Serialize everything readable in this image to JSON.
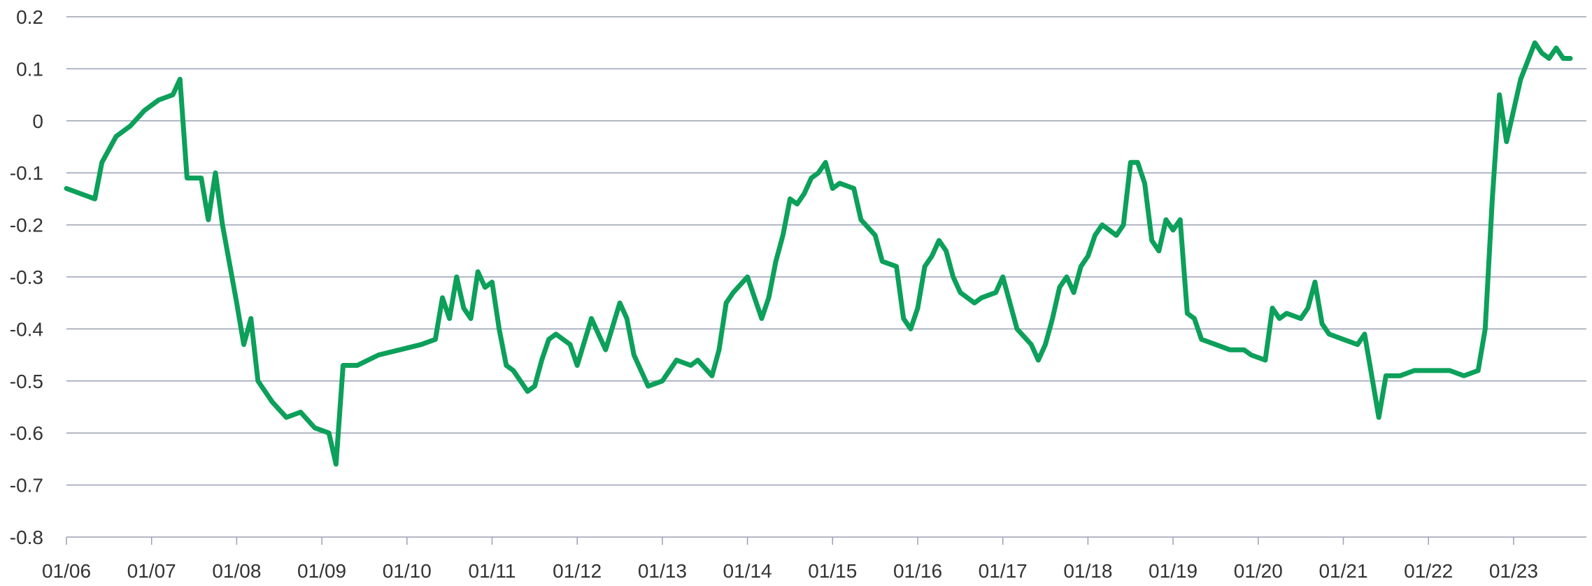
{
  "chart_data": {
    "type": "line",
    "title": "",
    "xlabel": "",
    "ylabel": "",
    "ylim": [
      -0.8,
      0.2
    ],
    "xlim": [
      "2006-01",
      "2023-09"
    ],
    "grid": true,
    "legend": "none",
    "yticks": [
      "0.2",
      "0.1",
      "0",
      "-0.1",
      "-0.2",
      "-0.3",
      "-0.4",
      "-0.5",
      "-0.6",
      "-0.7",
      "-0.8"
    ],
    "xticks": [
      "01/06",
      "01/07",
      "01/08",
      "01/09",
      "01/10",
      "01/11",
      "01/12",
      "01/13",
      "01/14",
      "01/15",
      "01/16",
      "01/17",
      "01/18",
      "01/19",
      "01/20",
      "01/21",
      "01/22",
      "01/23"
    ],
    "colors": {
      "series": "#0ca05a",
      "grid": "#9aa0b4"
    },
    "series": [
      {
        "values": [
          [
            "2006-01",
            -0.13
          ],
          [
            "2006-03",
            -0.14
          ],
          [
            "2006-05",
            -0.15
          ],
          [
            "2006-06",
            -0.08
          ],
          [
            "2006-08",
            -0.03
          ],
          [
            "2006-10",
            -0.01
          ],
          [
            "2006-12",
            0.02
          ],
          [
            "2007-02",
            0.04
          ],
          [
            "2007-04",
            0.05
          ],
          [
            "2007-05",
            0.08
          ],
          [
            "2007-06",
            -0.11
          ],
          [
            "2007-08",
            -0.11
          ],
          [
            "2007-09",
            -0.19
          ],
          [
            "2007-10",
            -0.1
          ],
          [
            "2007-11",
            -0.2
          ],
          [
            "2008-01",
            -0.35
          ],
          [
            "2008-02",
            -0.43
          ],
          [
            "2008-03",
            -0.38
          ],
          [
            "2008-04",
            -0.5
          ],
          [
            "2008-06",
            -0.54
          ],
          [
            "2008-08",
            -0.57
          ],
          [
            "2008-10",
            -0.56
          ],
          [
            "2008-12",
            -0.59
          ],
          [
            "2009-02",
            -0.6
          ],
          [
            "2009-03",
            -0.66
          ],
          [
            "2009-04",
            -0.47
          ],
          [
            "2009-06",
            -0.47
          ],
          [
            "2009-09",
            -0.45
          ],
          [
            "2009-12",
            -0.44
          ],
          [
            "2010-03",
            -0.43
          ],
          [
            "2010-05",
            -0.42
          ],
          [
            "2010-06",
            -0.34
          ],
          [
            "2010-07",
            -0.38
          ],
          [
            "2010-08",
            -0.3
          ],
          [
            "2010-09",
            -0.36
          ],
          [
            "2010-10",
            -0.38
          ],
          [
            "2010-11",
            -0.29
          ],
          [
            "2010-12",
            -0.32
          ],
          [
            "2011-01",
            -0.31
          ],
          [
            "2011-02",
            -0.4
          ],
          [
            "2011-03",
            -0.47
          ],
          [
            "2011-04",
            -0.48
          ],
          [
            "2011-06",
            -0.52
          ],
          [
            "2011-07",
            -0.51
          ],
          [
            "2011-08",
            -0.46
          ],
          [
            "2011-09",
            -0.42
          ],
          [
            "2011-10",
            -0.41
          ],
          [
            "2011-12",
            -0.43
          ],
          [
            "2012-01",
            -0.47
          ],
          [
            "2012-03",
            -0.38
          ],
          [
            "2012-05",
            -0.44
          ],
          [
            "2012-07",
            -0.35
          ],
          [
            "2012-08",
            -0.38
          ],
          [
            "2012-09",
            -0.45
          ],
          [
            "2012-11",
            -0.51
          ],
          [
            "2013-01",
            -0.5
          ],
          [
            "2013-03",
            -0.46
          ],
          [
            "2013-05",
            -0.47
          ],
          [
            "2013-06",
            -0.46
          ],
          [
            "2013-08",
            -0.49
          ],
          [
            "2013-09",
            -0.44
          ],
          [
            "2013-10",
            -0.35
          ],
          [
            "2013-11",
            -0.33
          ],
          [
            "2014-01",
            -0.3
          ],
          [
            "2014-03",
            -0.38
          ],
          [
            "2014-04",
            -0.34
          ],
          [
            "2014-05",
            -0.27
          ],
          [
            "2014-06",
            -0.22
          ],
          [
            "2014-07",
            -0.15
          ],
          [
            "2014-08",
            -0.16
          ],
          [
            "2014-09",
            -0.14
          ],
          [
            "2014-10",
            -0.11
          ],
          [
            "2014-11",
            -0.1
          ],
          [
            "2014-12",
            -0.08
          ],
          [
            "2015-01",
            -0.13
          ],
          [
            "2015-02",
            -0.12
          ],
          [
            "2015-04",
            -0.13
          ],
          [
            "2015-05",
            -0.19
          ],
          [
            "2015-07",
            -0.22
          ],
          [
            "2015-08",
            -0.27
          ],
          [
            "2015-10",
            -0.28
          ],
          [
            "2015-11",
            -0.38
          ],
          [
            "2015-12",
            -0.4
          ],
          [
            "2016-01",
            -0.36
          ],
          [
            "2016-02",
            -0.28
          ],
          [
            "2016-03",
            -0.26
          ],
          [
            "2016-04",
            -0.23
          ],
          [
            "2016-05",
            -0.25
          ],
          [
            "2016-06",
            -0.3
          ],
          [
            "2016-07",
            -0.33
          ],
          [
            "2016-09",
            -0.35
          ],
          [
            "2016-10",
            -0.34
          ],
          [
            "2016-12",
            -0.33
          ],
          [
            "2017-01",
            -0.3
          ],
          [
            "2017-03",
            -0.4
          ],
          [
            "2017-05",
            -0.43
          ],
          [
            "2017-06",
            -0.46
          ],
          [
            "2017-07",
            -0.43
          ],
          [
            "2017-08",
            -0.38
          ],
          [
            "2017-09",
            -0.32
          ],
          [
            "2017-10",
            -0.3
          ],
          [
            "2017-11",
            -0.33
          ],
          [
            "2017-12",
            -0.28
          ],
          [
            "2018-01",
            -0.26
          ],
          [
            "2018-02",
            -0.22
          ],
          [
            "2018-03",
            -0.2
          ],
          [
            "2018-05",
            -0.22
          ],
          [
            "2018-06",
            -0.2
          ],
          [
            "2018-07",
            -0.08
          ],
          [
            "2018-08",
            -0.08
          ],
          [
            "2018-09",
            -0.12
          ],
          [
            "2018-10",
            -0.23
          ],
          [
            "2018-11",
            -0.25
          ],
          [
            "2018-12",
            -0.19
          ],
          [
            "2019-01",
            -0.21
          ],
          [
            "2019-02",
            -0.19
          ],
          [
            "2019-03",
            -0.37
          ],
          [
            "2019-04",
            -0.38
          ],
          [
            "2019-05",
            -0.42
          ],
          [
            "2019-07",
            -0.43
          ],
          [
            "2019-09",
            -0.44
          ],
          [
            "2019-11",
            -0.44
          ],
          [
            "2019-12",
            -0.45
          ],
          [
            "2020-02",
            -0.46
          ],
          [
            "2020-03",
            -0.36
          ],
          [
            "2020-04",
            -0.38
          ],
          [
            "2020-05",
            -0.37
          ],
          [
            "2020-07",
            -0.38
          ],
          [
            "2020-08",
            -0.36
          ],
          [
            "2020-09",
            -0.31
          ],
          [
            "2020-10",
            -0.39
          ],
          [
            "2020-11",
            -0.41
          ],
          [
            "2021-01",
            -0.42
          ],
          [
            "2021-03",
            -0.43
          ],
          [
            "2021-04",
            -0.41
          ],
          [
            "2021-05",
            -0.49
          ],
          [
            "2021-06",
            -0.57
          ],
          [
            "2021-07",
            -0.49
          ],
          [
            "2021-09",
            -0.49
          ],
          [
            "2021-11",
            -0.48
          ],
          [
            "2022-02",
            -0.48
          ],
          [
            "2022-04",
            -0.48
          ],
          [
            "2022-06",
            -0.49
          ],
          [
            "2022-08",
            -0.48
          ],
          [
            "2022-09",
            -0.4
          ],
          [
            "2022-10",
            -0.15
          ],
          [
            "2022-11",
            0.05
          ],
          [
            "2022-12",
            -0.04
          ],
          [
            "2023-01",
            0.02
          ],
          [
            "2023-02",
            0.08
          ],
          [
            "2023-04",
            0.15
          ],
          [
            "2023-05",
            0.13
          ],
          [
            "2023-06",
            0.12
          ],
          [
            "2023-07",
            0.14
          ],
          [
            "2023-08",
            0.12
          ],
          [
            "2023-09",
            0.12
          ]
        ]
      }
    ]
  }
}
